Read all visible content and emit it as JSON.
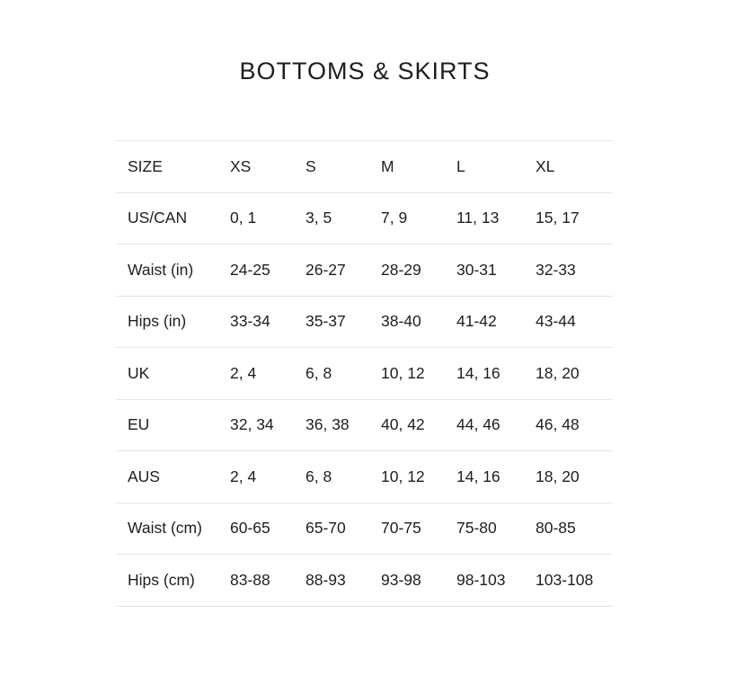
{
  "title": "BOTTOMS & SKIRTS",
  "rows": [
    [
      "SIZE",
      "XS",
      "S",
      "M",
      "L",
      "XL"
    ],
    [
      "US/CAN",
      "0, 1",
      "3, 5",
      "7, 9",
      "11, 13",
      "15, 17"
    ],
    [
      "Waist (in)",
      "24-25",
      "26-27",
      "28-29",
      "30-31",
      "32-33"
    ],
    [
      "Hips (in)",
      "33-34",
      "35-37",
      "38-40",
      "41-42",
      "43-44"
    ],
    [
      "UK",
      "2, 4",
      "6, 8",
      "10, 12",
      "14, 16",
      "18, 20"
    ],
    [
      "EU",
      "32, 34",
      "36, 38",
      "40, 42",
      "44, 46",
      "46, 48"
    ],
    [
      "AUS",
      "2, 4",
      "6, 8",
      "10, 12",
      "14, 16",
      "18, 20"
    ],
    [
      "Waist (cm)",
      "60-65",
      "65-70",
      "70-75",
      "75-80",
      "80-85"
    ],
    [
      "Hips (cm)",
      "83-88",
      "88-93",
      "93-98",
      "98-103",
      "103-108"
    ]
  ]
}
